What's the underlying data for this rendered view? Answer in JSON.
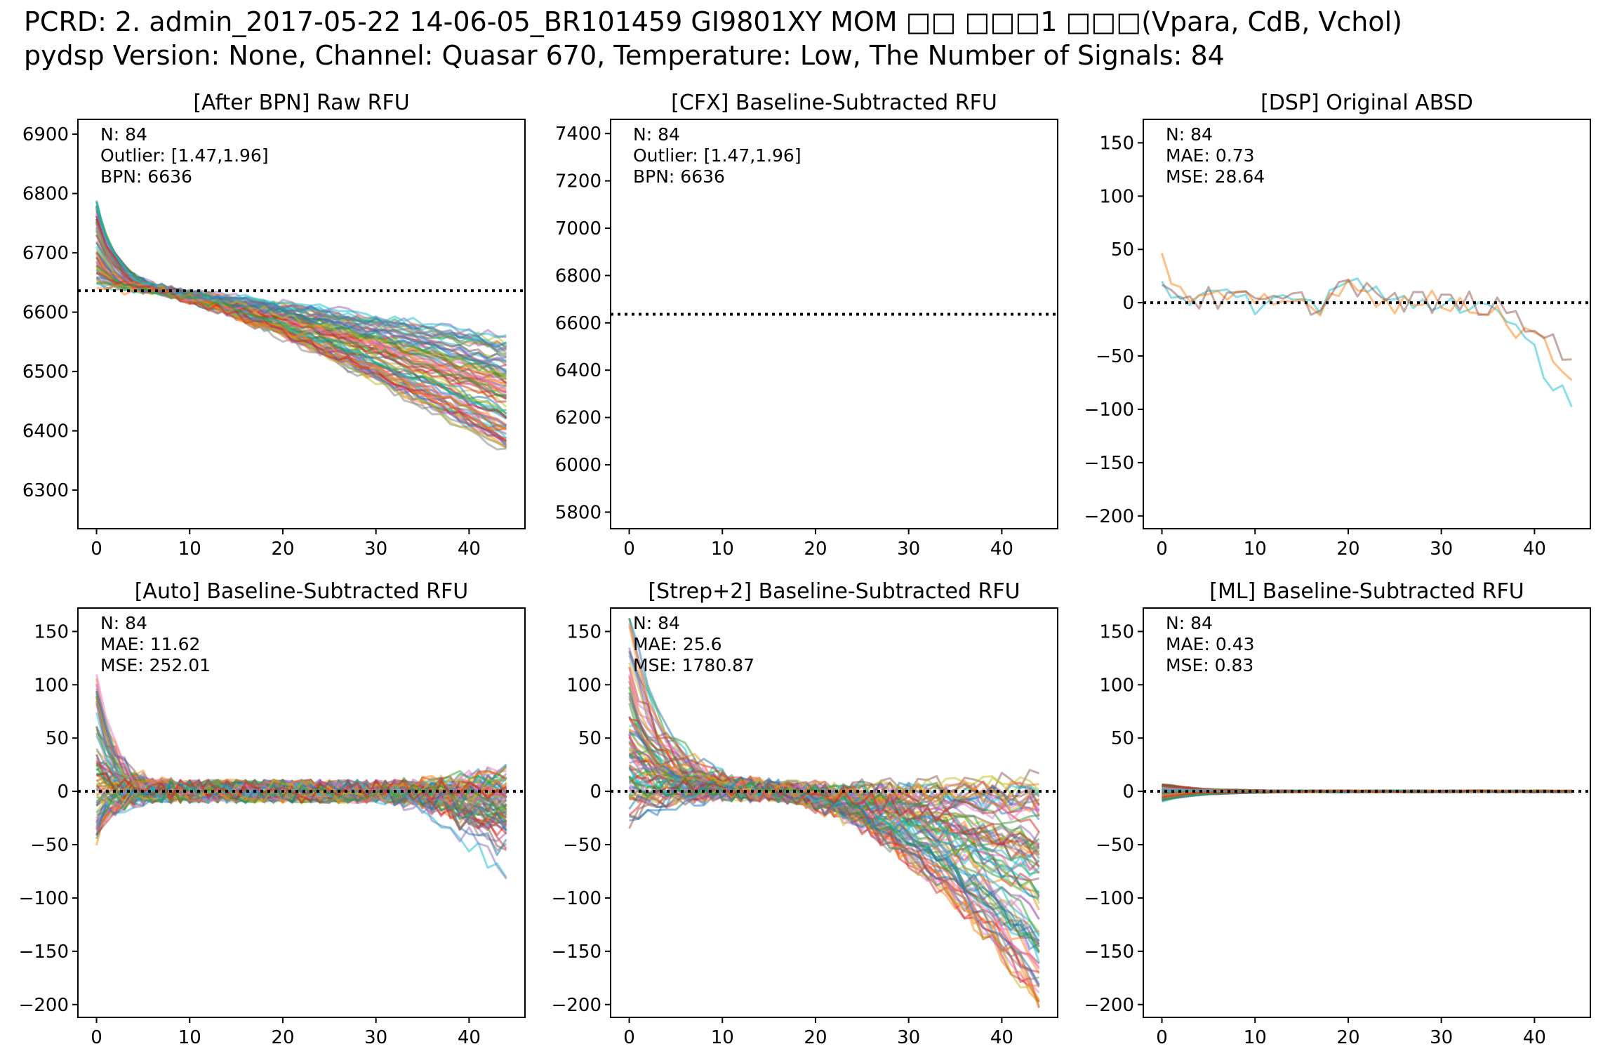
{
  "suptitle": {
    "line1": "PCRD: 2. admin_2017-05-22 14-06-05_BR101459 GI9801XY MOM □□ □□□1 □□□(Vpara, CdB, Vchol)",
    "line2": "pydsp Version: None, Channel: Quasar 670, Temperature: Low, The Number of Signals: 84"
  },
  "chart_data": [
    {
      "type": "line",
      "title": "[After BPN] Raw RFU",
      "annotations": [
        "N: 84",
        "Outlier: [1.47,1.96]",
        "BPN: 6636"
      ],
      "xlim": [
        -2,
        46
      ],
      "ylim": [
        6235,
        6925
      ],
      "xticks": [
        0,
        10,
        20,
        30,
        40
      ],
      "yticks": [
        6300,
        6400,
        6500,
        6600,
        6700,
        6800,
        6900
      ],
      "reference_line": 6636,
      "x_range": [
        0,
        44
      ],
      "series_count": 84,
      "series_model": {
        "kind": "raw",
        "start": [
          6640,
          6785
        ],
        "plateau": 6636,
        "end": [
          6360,
          6560
        ]
      }
    },
    {
      "type": "line",
      "title": "[CFX] Baseline-Subtracted RFU",
      "annotations": [
        "N: 84",
        "Outlier: [1.47,1.96]",
        "BPN: 6636"
      ],
      "xlim": [
        -2,
        46
      ],
      "ylim": [
        5730,
        7460
      ],
      "xticks": [
        0,
        10,
        20,
        30,
        40
      ],
      "yticks": [
        5800,
        6000,
        6200,
        6400,
        6600,
        6800,
        7000,
        7200,
        7400
      ],
      "reference_line": 6636,
      "x_range": [
        0,
        44
      ],
      "series_count": 0
    },
    {
      "type": "line",
      "title": "[DSP] Original ABSD",
      "annotations": [
        "N: 84",
        "MAE: 0.73",
        "MSE: 28.64"
      ],
      "xlim": [
        -2,
        46
      ],
      "ylim": [
        -212,
        172
      ],
      "xticks": [
        0,
        10,
        20,
        30,
        40
      ],
      "yticks": [
        -200,
        -150,
        -100,
        -50,
        0,
        50,
        100,
        150
      ],
      "reference_line": 0,
      "x_range": [
        0,
        44
      ],
      "series_count": 3,
      "series_model": {
        "kind": "absd",
        "end": [
          -92,
          -66,
          -48
        ]
      }
    },
    {
      "type": "line",
      "title": "[Auto] Baseline-Subtracted RFU",
      "annotations": [
        "N: 84",
        "MAE: 11.62",
        "MSE: 252.01"
      ],
      "xlim": [
        -2,
        46
      ],
      "ylim": [
        -212,
        172
      ],
      "xticks": [
        0,
        10,
        20,
        30,
        40
      ],
      "yticks": [
        -200,
        -150,
        -100,
        -50,
        0,
        50,
        100,
        150
      ],
      "reference_line": 0,
      "x_range": [
        0,
        44
      ],
      "series_count": 84,
      "series_model": {
        "kind": "auto",
        "start": [
          -40,
          120
        ],
        "end": [
          -92,
          18
        ]
      }
    },
    {
      "type": "line",
      "title": "[Strep+2] Baseline-Subtracted RFU",
      "annotations": [
        "N: 84",
        "MAE: 25.6",
        "MSE: 1780.87"
      ],
      "xlim": [
        -2,
        46
      ],
      "ylim": [
        -212,
        172
      ],
      "xticks": [
        0,
        10,
        20,
        30,
        40
      ],
      "yticks": [
        -200,
        -150,
        -100,
        -50,
        0,
        50,
        100,
        150
      ],
      "reference_line": 0,
      "x_range": [
        0,
        44
      ],
      "series_count": 84,
      "series_model": {
        "kind": "strep",
        "start": [
          -30,
          165
        ],
        "end": [
          -205,
          15
        ]
      }
    },
    {
      "type": "line",
      "title": "[ML] Baseline-Subtracted RFU",
      "annotations": [
        "N: 84",
        "MAE: 0.43",
        "MSE: 0.83"
      ],
      "xlim": [
        -2,
        46
      ],
      "ylim": [
        -212,
        172
      ],
      "xticks": [
        0,
        10,
        20,
        30,
        40
      ],
      "yticks": [
        -200,
        -150,
        -100,
        -50,
        0,
        50,
        100,
        150
      ],
      "reference_line": 0,
      "x_range": [
        0,
        44
      ],
      "series_count": 84,
      "series_model": {
        "kind": "ml",
        "start": [
          -10,
          7
        ],
        "end": [
          -1,
          1
        ]
      }
    }
  ],
  "colors": {
    "palette": [
      "#1f77b4",
      "#ff7f0e",
      "#2ca02c",
      "#d62728",
      "#9467bd",
      "#8c564b",
      "#e377c2",
      "#7f7f7f",
      "#bcbd22",
      "#17becf"
    ],
    "reference_line": "#000000",
    "axes": "#000000"
  }
}
